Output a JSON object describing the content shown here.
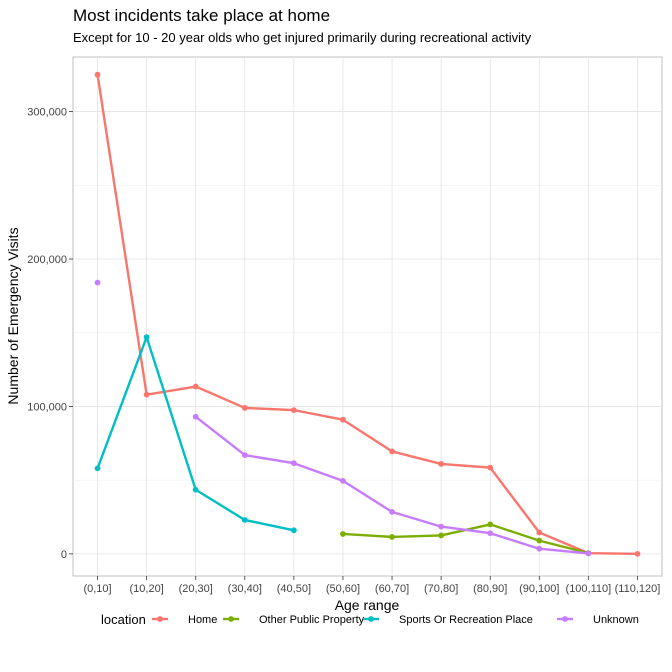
{
  "chart_data": {
    "type": "line",
    "title": "Most incidents take place at home",
    "subtitle": "Except for 10 - 20 year olds who get injured primarily during recreational activity",
    "xlabel": "Age range",
    "ylabel": "Number of Emergency Visits",
    "categories": [
      "(0,10]",
      "(10,20]",
      "(20,30]",
      "(30,40]",
      "(40,50]",
      "(50,60]",
      "(60,70]",
      "(70,80]",
      "(80,90]",
      "(90,100]",
      "(100,110]",
      "(110,120]"
    ],
    "ylim": [
      -15000,
      337000
    ],
    "yticks": [
      0,
      100000,
      200000,
      300000
    ],
    "ytick_labels": [
      "0",
      "100,000",
      "200,000",
      "300,000"
    ],
    "grid": true,
    "legend": {
      "title": "location",
      "position": "bottom"
    },
    "series": [
      {
        "name": "Home",
        "color": "#F8766D",
        "values": [
          325000,
          108000,
          113500,
          99000,
          97500,
          91000,
          69500,
          61000,
          58500,
          14500,
          500,
          0
        ]
      },
      {
        "name": "Other Public Property",
        "color": "#7CAE00",
        "values": [
          null,
          null,
          null,
          null,
          null,
          13500,
          11500,
          12500,
          20000,
          9000,
          500,
          null
        ]
      },
      {
        "name": "Sports Or Recreation Place",
        "color": "#00BFC4",
        "values": [
          58000,
          147000,
          43500,
          23000,
          16000,
          null,
          null,
          null,
          null,
          null,
          null,
          null
        ]
      },
      {
        "name": "Unknown",
        "color": "#C77CFF",
        "values": [
          184000,
          null,
          93000,
          67000,
          61500,
          49500,
          28500,
          18500,
          14000,
          3500,
          300,
          null
        ]
      }
    ]
  }
}
